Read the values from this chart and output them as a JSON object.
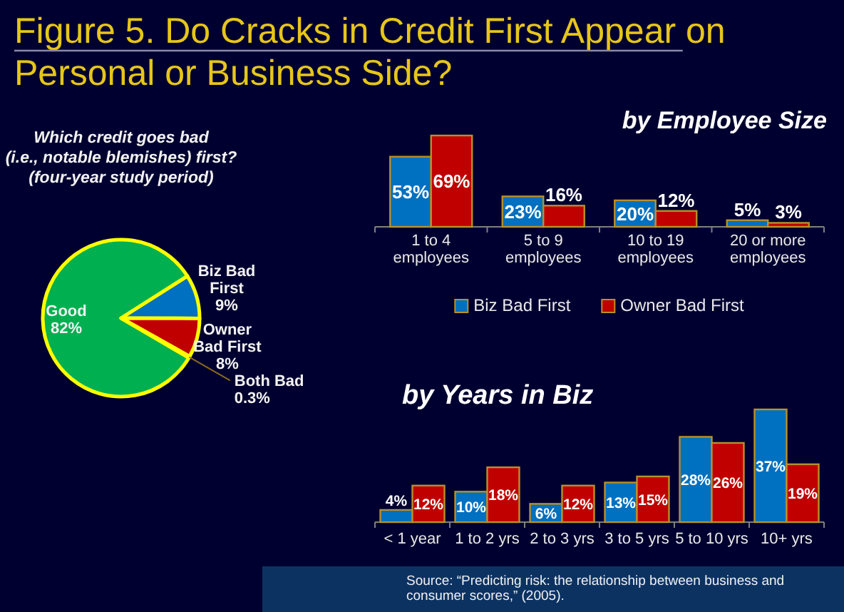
{
  "chart_data": [
    {
      "type": "pie",
      "title": "Figure 5.  Do Cracks in Credit First Appear on Personal or Business Side?",
      "subtitle": "Which credit goes bad\n(i.e., notable blemishes) first?\n(four-year study period)",
      "categories": [
        "Good",
        "Biz Bad First",
        "Owner Bad First",
        "Both Bad"
      ],
      "values": [
        82,
        9,
        8,
        0.3
      ],
      "colors": [
        "#00b050",
        "#0070c0",
        "#c00000",
        "#7030a0"
      ],
      "value_labels": [
        "82%",
        "9%",
        "8%",
        "0.3%"
      ]
    },
    {
      "type": "bar",
      "title": "by Employee Size",
      "categories": [
        "1 to 4 employees",
        "5 to 9 employees",
        "10 to 19 employees",
        "20 or more employees"
      ],
      "series": [
        {
          "name": "Biz Bad First",
          "color": "#0070c0",
          "values": [
            53,
            23,
            20,
            5
          ],
          "value_labels": [
            "53%",
            "23%",
            "20%",
            "5%"
          ]
        },
        {
          "name": "Owner Bad First",
          "color": "#c00000",
          "values": [
            69,
            16,
            12,
            3
          ],
          "value_labels": [
            "69%",
            "16%",
            "12%",
            "3%"
          ]
        }
      ],
      "legend": "bottom"
    },
    {
      "type": "bar",
      "title": "by Years in Biz",
      "categories": [
        "< 1 year",
        "1 to 2 yrs",
        "2 to 3 yrs",
        "3 to 5 yrs",
        "5 to 10 yrs",
        "10+ yrs"
      ],
      "series": [
        {
          "color": "#0070c0",
          "values": [
            4,
            10,
            6,
            13,
            28,
            37
          ],
          "value_labels": [
            "4%",
            "10%",
            "6%",
            "13%",
            "28%",
            "37%"
          ]
        },
        {
          "color": "#c00000",
          "values": [
            12,
            18,
            12,
            15,
            26,
            19
          ],
          "value_labels": [
            "12%",
            "18%",
            "12%",
            "15%",
            "26%",
            "19%"
          ]
        }
      ],
      "annotations": [
        "Source:  “Predicting risk: the relationship between business and consumer scores,” (2005)."
      ]
    }
  ]
}
